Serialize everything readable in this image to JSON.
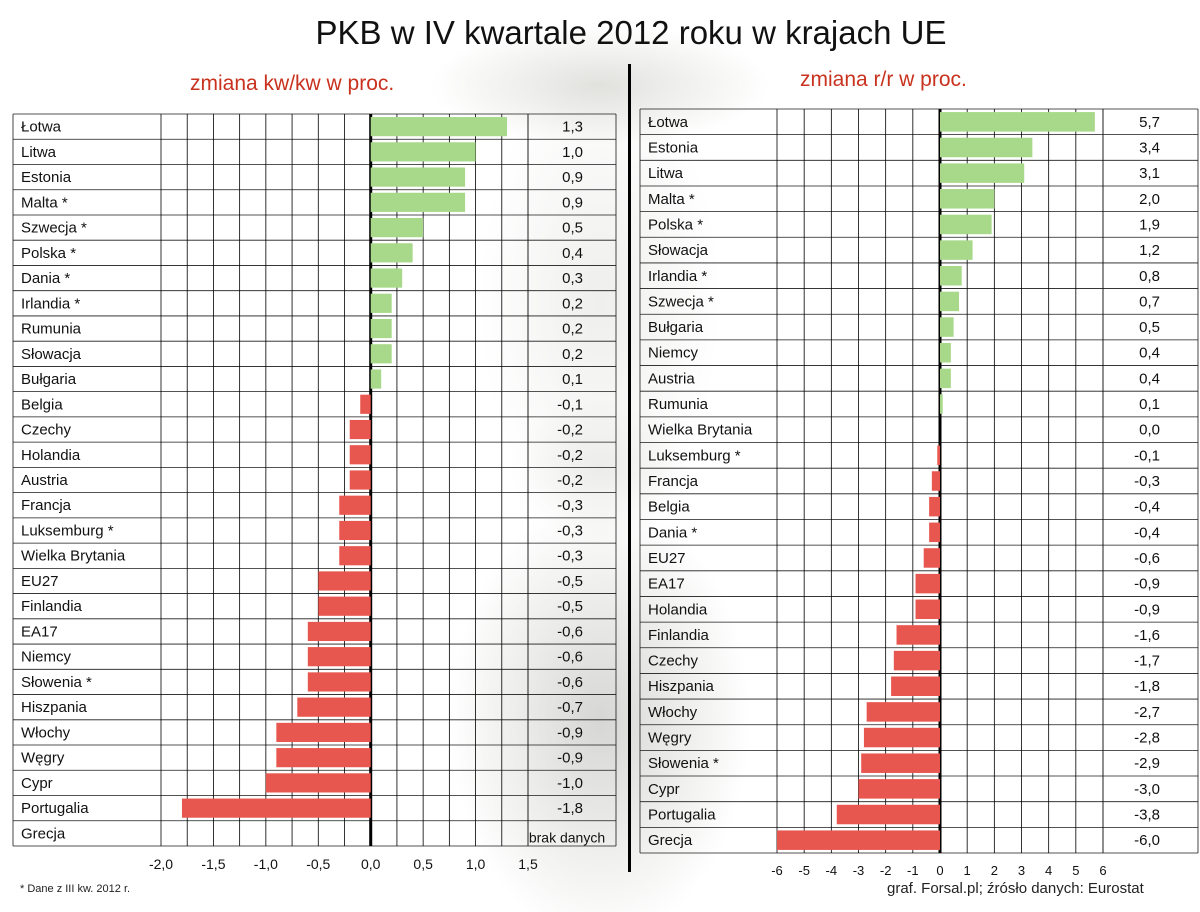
{
  "title": "PKB w IV kwartale 2012 roku w krajach UE",
  "footnote": "* Dane z III kw. 2012 r.",
  "source": "graf. Forsal.pl; źrósło danych: Eurostat",
  "colors": {
    "positive": "#a8d98a",
    "negative": "#e8574f",
    "subtitle": "#c8321e"
  },
  "chart_data": [
    {
      "type": "bar",
      "orientation": "horizontal",
      "title": "zmiana kw/kw w proc.",
      "categories": [
        "Łotwa",
        "Litwa",
        "Estonia",
        "Malta *",
        "Szwecja *",
        "Polska *",
        "Dania *",
        "Irlandia *",
        "Rumunia",
        "Słowacja",
        "Bułgaria",
        "Belgia",
        "Czechy",
        "Holandia",
        "Austria",
        "Francja",
        "Luksemburg *",
        "Wielka Brytania",
        "EU27",
        "Finlandia",
        "EA17",
        "Niemcy",
        "Słowenia *",
        "Hiszpania",
        "Włochy",
        "Węgry",
        "Cypr",
        "Portugalia",
        "Grecja"
      ],
      "values": [
        1.3,
        1.0,
        0.9,
        0.9,
        0.5,
        0.4,
        0.3,
        0.2,
        0.2,
        0.2,
        0.1,
        -0.1,
        -0.2,
        -0.2,
        -0.2,
        -0.3,
        -0.3,
        -0.3,
        -0.5,
        -0.5,
        -0.6,
        -0.6,
        -0.6,
        -0.7,
        -0.9,
        -0.9,
        -1.0,
        -1.8,
        null
      ],
      "value_labels": [
        "1,3",
        "1,0",
        "0,9",
        "0,9",
        "0,5",
        "0,4",
        "0,3",
        "0,2",
        "0,2",
        "0,2",
        "0,1",
        "-0,1",
        "-0,2",
        "-0,2",
        "-0,2",
        "-0,3",
        "-0,3",
        "-0,3",
        "-0,5",
        "-0,5",
        "-0,6",
        "-0,6",
        "-0,6",
        "-0,7",
        "-0,9",
        "-0,9",
        "-1,0",
        "-1,8",
        "brak danych"
      ],
      "xlim": [
        -2.0,
        1.5
      ],
      "xticks": [
        -2.0,
        -1.5,
        -1.0,
        -0.5,
        0.0,
        0.5,
        1.0,
        1.5
      ],
      "xtick_labels": [
        "-2,0",
        "-1,5",
        "-1,0",
        "-0,5",
        "0,0",
        "0,5",
        "1,0",
        "1,5"
      ],
      "grid": true
    },
    {
      "type": "bar",
      "orientation": "horizontal",
      "title": "zmiana r/r w proc.",
      "categories": [
        "Łotwa",
        "Estonia",
        "Litwa",
        "Malta *",
        "Polska *",
        "Słowacja",
        "Irlandia *",
        "Szwecja *",
        "Bułgaria",
        "Niemcy",
        "Austria",
        "Rumunia",
        "Wielka Brytania",
        "Luksemburg *",
        "Francja",
        "Belgia",
        "Dania *",
        "EU27",
        "EA17",
        "Holandia",
        "Finlandia",
        "Czechy",
        "Hiszpania",
        "Włochy",
        "Węgry",
        "Słowenia *",
        "Cypr",
        "Portugalia",
        "Grecja"
      ],
      "values": [
        5.7,
        3.4,
        3.1,
        2.0,
        1.9,
        1.2,
        0.8,
        0.7,
        0.5,
        0.4,
        0.4,
        0.1,
        0.0,
        -0.1,
        -0.3,
        -0.4,
        -0.4,
        -0.6,
        -0.9,
        -0.9,
        -1.6,
        -1.7,
        -1.8,
        -2.7,
        -2.8,
        -2.9,
        -3.0,
        -3.8,
        -6.0
      ],
      "value_labels": [
        "5,7",
        "3,4",
        "3,1",
        "2,0",
        "1,9",
        "1,2",
        "0,8",
        "0,7",
        "0,5",
        "0,4",
        "0,4",
        "0,1",
        "0,0",
        "-0,1",
        "-0,3",
        "-0,4",
        "-0,4",
        "-0,6",
        "-0,9",
        "-0,9",
        "-1,6",
        "-1,7",
        "-1,8",
        "-2,7",
        "-2,8",
        "-2,9",
        "-3,0",
        "-3,8",
        "-6,0"
      ],
      "xlim": [
        -6,
        6
      ],
      "xticks": [
        -6,
        -5,
        -4,
        -3,
        -2,
        -1,
        0,
        1,
        2,
        3,
        4,
        5,
        6
      ],
      "xtick_labels": [
        "-6",
        "-5",
        "-4",
        "-3",
        "-2",
        "-1",
        "0",
        "1",
        "2",
        "3",
        "4",
        "5",
        "6"
      ],
      "grid": true
    }
  ]
}
